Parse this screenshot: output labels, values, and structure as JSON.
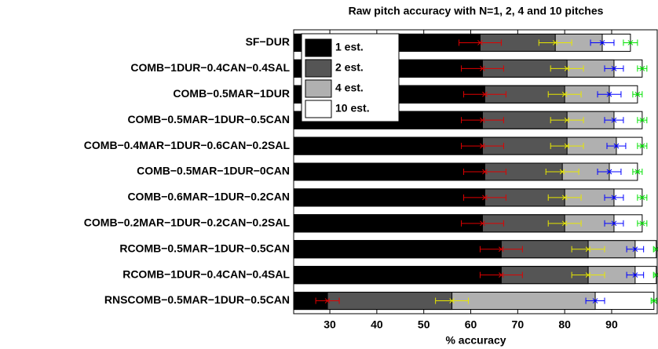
{
  "chart_data": {
    "type": "bar",
    "orientation": "horizontal",
    "title": "Raw pitch accuracy with N=1, 2, 4 and 10 pitches",
    "x_label": "% accuracy",
    "categories": [
      "SF−DUR",
      "COMB−1DUR−0.4CAN−0.4SAL",
      "COMB−0.5MAR−1DUR",
      "COMB−0.5MAR−1DUR−0.5CAN",
      "COMB−0.4MAR−1DUR−0.6CAN−0.2SAL",
      "COMB−0.5MAR−1DUR−0CAN",
      "COMB−0.6MAR−1DUR−0.2CAN",
      "COMB−0.2MAR−1DUR−0.2CAN−0.2SAL",
      "RCOMB−0.5MAR−1DUR−0.5CAN",
      "RCOMB−1DUR−0.4CAN−0.4SAL",
      "RNSCOMB−0.5MAR−1DUR−0.5CAN"
    ],
    "series": [
      {
        "name": "1 est.",
        "color": "#000000",
        "error_color": "#e00000",
        "values": [
          62,
          62.5,
          63,
          62.5,
          62.5,
          63,
          63,
          62.5,
          66.5,
          66.5,
          29.5
        ],
        "errors": [
          4.5,
          4.5,
          4.5,
          4.5,
          4.5,
          4.5,
          4.5,
          4.5,
          4.5,
          4.5,
          2.5
        ]
      },
      {
        "name": "2 est.",
        "color": "#555555",
        "error_color": "#e8e800",
        "values": [
          78,
          80.5,
          80,
          80.5,
          80.5,
          79.5,
          80,
          80,
          85,
          85,
          56
        ],
        "errors": [
          3.5,
          3.5,
          3.5,
          3.5,
          3.5,
          3.5,
          3.5,
          3.5,
          3.5,
          3.5,
          3.5
        ]
      },
      {
        "name": "4 est.",
        "color": "#b0b0b0",
        "error_color": "#0000ff",
        "values": [
          88,
          90.5,
          89.5,
          90.5,
          91,
          89.5,
          90.5,
          90.5,
          95,
          95,
          86.5
        ],
        "errors": [
          2.5,
          2,
          2.5,
          2,
          2,
          2.5,
          2,
          2,
          1.8,
          1.8,
          2
        ]
      },
      {
        "name": "10 est.",
        "color": "#ffffff",
        "error_color": "#00e000",
        "values": [
          94,
          96.5,
          95.5,
          96.5,
          96.5,
          95.5,
          96.5,
          96.5,
          99.5,
          99.5,
          99
        ],
        "errors": [
          1.5,
          1,
          1,
          1,
          1,
          1,
          1,
          1,
          0.6,
          0.6,
          0.6
        ]
      }
    ],
    "xlim": [
      22.3,
      99.7
    ],
    "xticks": [
      30,
      40,
      50,
      60,
      70,
      80,
      90
    ],
    "legend": "upper left"
  }
}
